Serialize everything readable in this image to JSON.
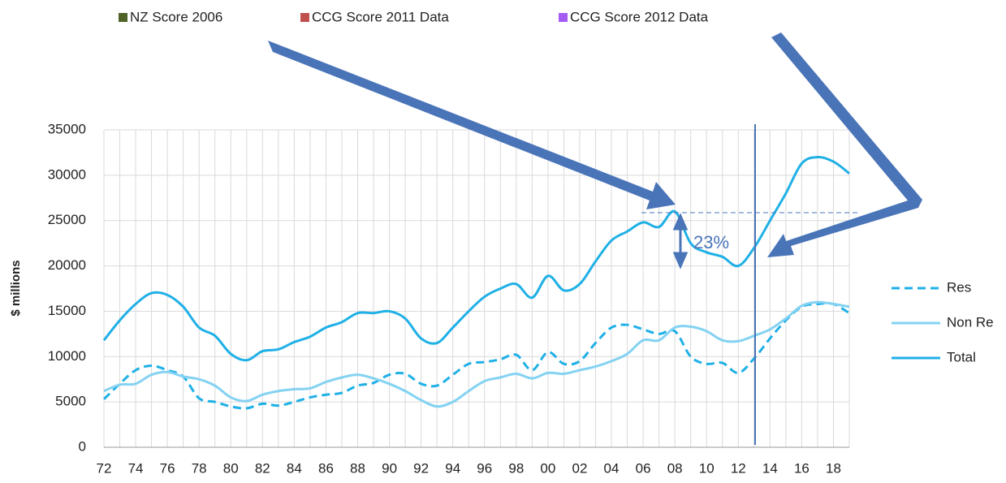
{
  "chart_data": {
    "type": "line",
    "legend_top": [
      {
        "name": "NZ Score 2006",
        "color": "#4f6228"
      },
      {
        "name": "CCG  Score 2011 Data",
        "color": "#c0504d"
      },
      {
        "name": "CCG  Score 2012 Data",
        "color": "#a45cf2"
      }
    ],
    "y_label": "$ millions",
    "annotations": [
      "23%"
    ],
    "categories": [
      "72",
      null,
      "74",
      null,
      "76",
      null,
      "78",
      null,
      "80",
      null,
      "82",
      null,
      "84",
      null,
      "86",
      null,
      "88",
      null,
      "90",
      null,
      "92",
      null,
      "94",
      null,
      "96",
      null,
      "98",
      null,
      "00",
      null,
      "02",
      null,
      "04",
      null,
      "06",
      null,
      "08",
      null,
      "10",
      null,
      "12",
      null,
      "14",
      null,
      "16",
      null,
      "18",
      null
    ],
    "series": [
      {
        "name": "Res",
        "color": "#1fb0e6",
        "dashed": true,
        "values": [
          5300,
          7000,
          8500,
          9000,
          8500,
          7800,
          5400,
          5000,
          4500,
          4300,
          4800,
          4600,
          5000,
          5500,
          5800,
          6000,
          6800,
          7100,
          8000,
          8100,
          7000,
          6800,
          8000,
          9200,
          9400,
          9700,
          10200,
          8500,
          10500,
          9200,
          9500,
          11500,
          13200,
          13500,
          13000,
          12500,
          12800,
          10000,
          9200,
          9300,
          8200,
          9800,
          12000,
          14000,
          15500,
          15800,
          15800,
          14800
        ]
      },
      {
        "name": "Non Re",
        "color": "#84d2f2",
        "dashed": false,
        "values": [
          6200,
          6900,
          7000,
          8000,
          8300,
          7800,
          7500,
          6800,
          5500,
          5100,
          5800,
          6200,
          6400,
          6500,
          7200,
          7700,
          8000,
          7600,
          7000,
          6200,
          5200,
          4500,
          5000,
          6200,
          7300,
          7700,
          8100,
          7600,
          8200,
          8100,
          8500,
          8900,
          9500,
          10300,
          11800,
          11800,
          13200,
          13300,
          12800,
          11800,
          11700,
          12300,
          13000,
          14200,
          15600,
          16000,
          15800,
          15500
        ]
      },
      {
        "name": "Total",
        "color": "#1fb0e6",
        "dashed": false,
        "values": [
          11800,
          14000,
          15800,
          17000,
          16800,
          15500,
          13200,
          12300,
          10300,
          9600,
          10600,
          10800,
          11600,
          12200,
          13200,
          13800,
          14800,
          14800,
          15000,
          14200,
          12000,
          11500,
          13200,
          15000,
          16600,
          17500,
          18000,
          16500,
          18900,
          17300,
          18000,
          20500,
          22800,
          23800,
          24800,
          24300,
          26000,
          22500,
          21500,
          21000,
          20000,
          22000,
          25000,
          28000,
          31300,
          32000,
          31500,
          30200
        ]
      }
    ],
    "ylim": [
      0,
      35000
    ],
    "yticks": [
      0,
      5000,
      10000,
      15000,
      20000,
      25000,
      30000,
      35000
    ],
    "grid": true
  }
}
